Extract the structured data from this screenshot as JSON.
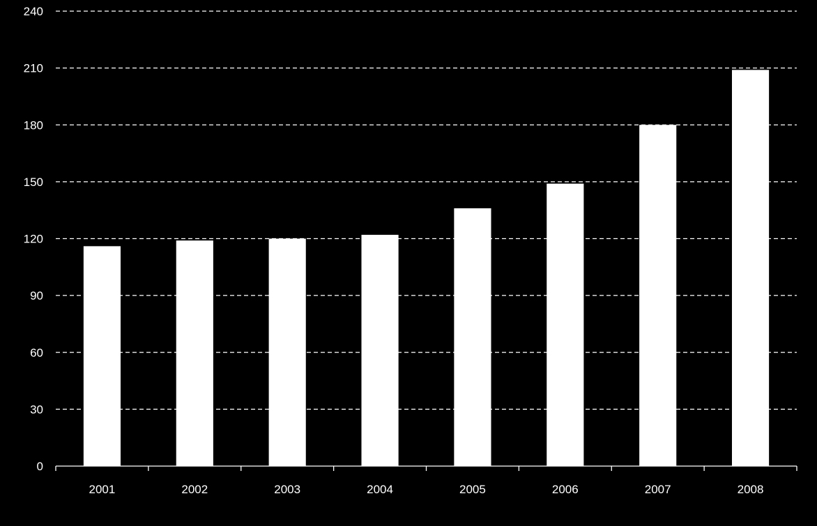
{
  "chart_data": {
    "type": "bar",
    "title": "",
    "xlabel": "",
    "ylabel": "",
    "categories": [
      "2001",
      "2002",
      "2003",
      "2004",
      "2005",
      "2006",
      "2007",
      "2008"
    ],
    "values": [
      116,
      119,
      120,
      122,
      136,
      149,
      180,
      209
    ],
    "ylim": [
      0,
      240
    ],
    "yticks": [
      0,
      30,
      60,
      90,
      120,
      150,
      180,
      210,
      240
    ],
    "grid": true,
    "legend": "none",
    "colors": {
      "background": "#000000",
      "bar": "#ffffff",
      "text": "#ffffff",
      "grid": "#ffffff"
    }
  }
}
